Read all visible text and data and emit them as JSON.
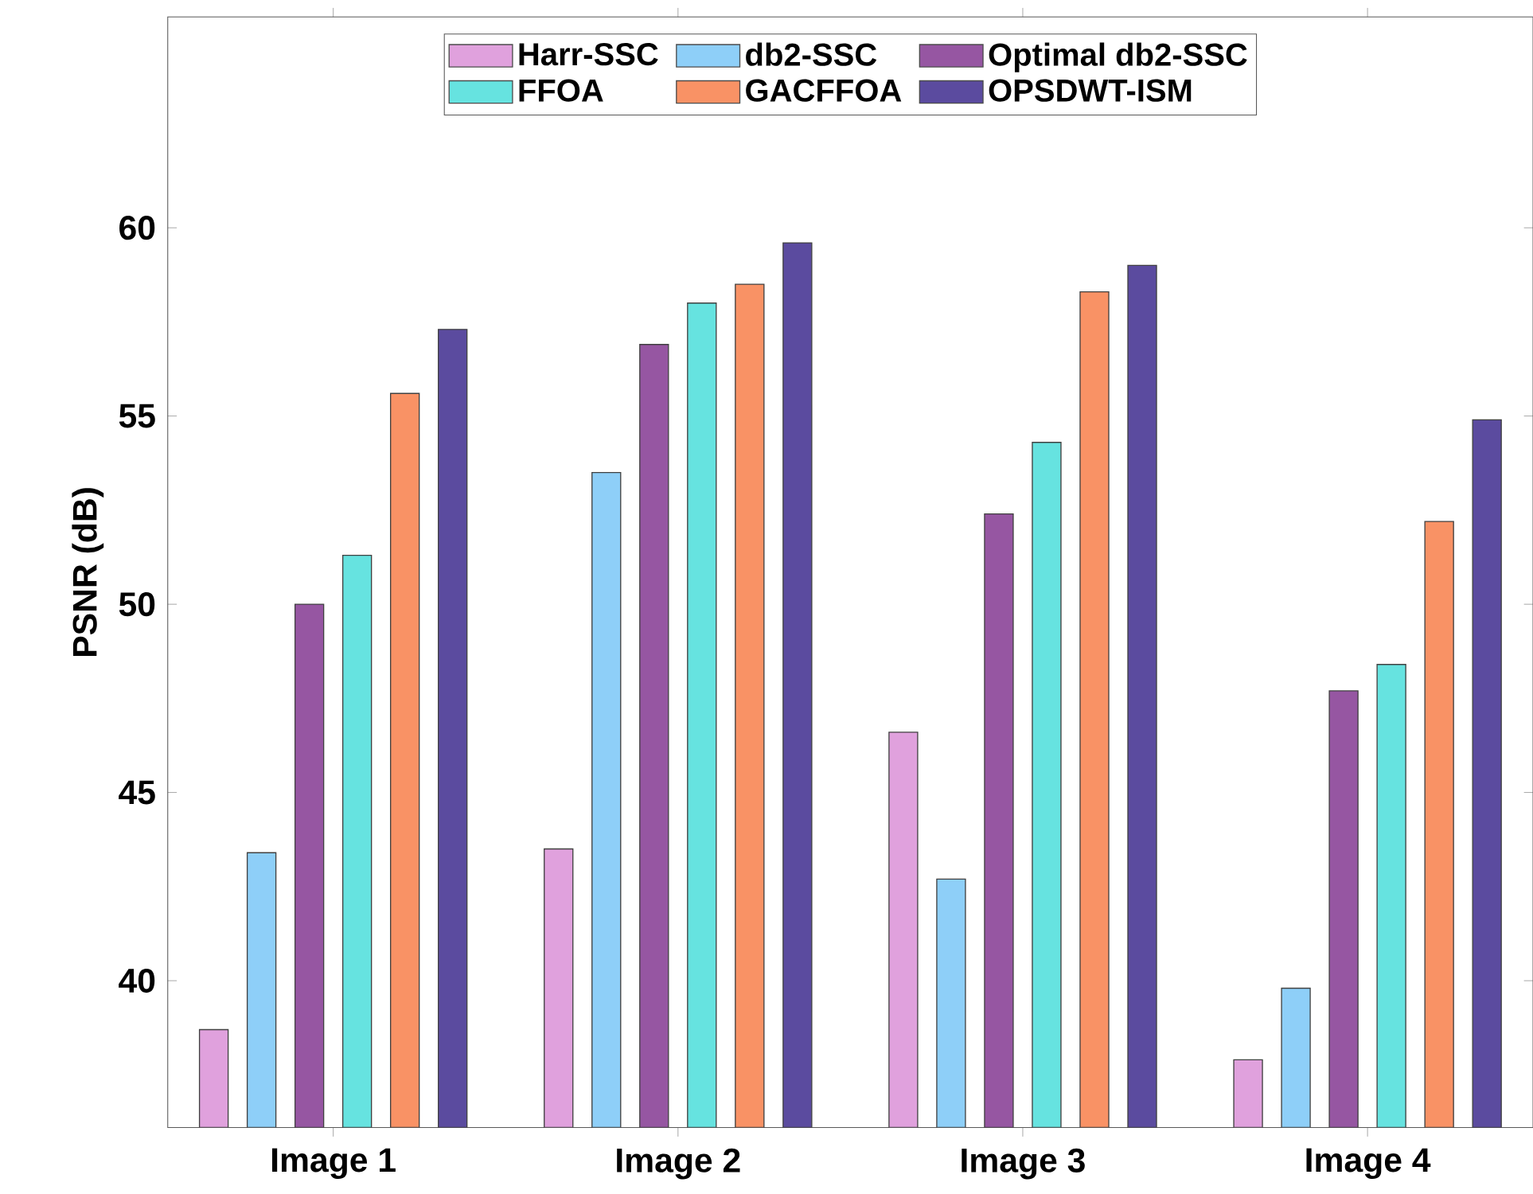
{
  "chart_data": {
    "type": "bar",
    "ylabel": "PSNR (dB)",
    "categories": [
      "Image 1",
      "Image 2",
      "Image 3",
      "Image 4"
    ],
    "series": [
      {
        "name": "Harr-SSC",
        "color": "#e0a1dd",
        "values": [
          38.7,
          43.5,
          46.6,
          37.9
        ]
      },
      {
        "name": "db2-SSC",
        "color": "#8ecff8",
        "values": [
          43.4,
          53.5,
          42.7,
          39.8
        ]
      },
      {
        "name": "Optimal db2-SSC",
        "color": "#9656a2",
        "values": [
          50.0,
          56.9,
          52.4,
          47.7
        ]
      },
      {
        "name": "FFOA",
        "color": "#66e3e0",
        "values": [
          51.3,
          58.0,
          54.3,
          48.4
        ]
      },
      {
        "name": "GACFFOA",
        "color": "#f99265",
        "values": [
          55.6,
          58.5,
          58.3,
          52.2
        ]
      },
      {
        "name": "OPSDWT-ISM",
        "color": "#5b4b9f",
        "values": [
          57.3,
          59.6,
          59.0,
          54.9
        ]
      }
    ],
    "ylim": [
      36.1,
      65.6
    ],
    "yticks": [
      40,
      45,
      50,
      55,
      60
    ],
    "legend": "top",
    "grid": false
  }
}
